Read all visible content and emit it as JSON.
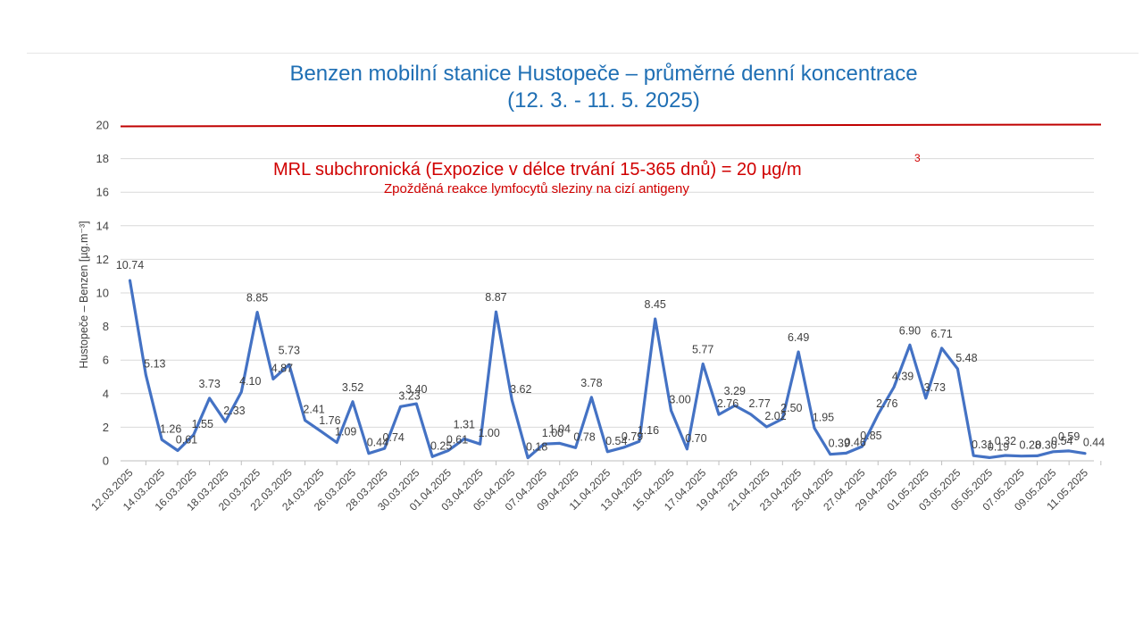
{
  "header": {
    "title_line1": "Benzen mobilní stanice Hustopeče – průměrné denní koncentrace",
    "title_line2": "(12. 3. - 11. 5. 2025)"
  },
  "annotation": {
    "mrl_text": "MRL subchronická (Expozice v délce trvání 15-365 dnů) = 20 µg/m",
    "mrl_superscript": "3",
    "mrl_note": "Zpožděná reakce lymfocytů sleziny na cizí antigeny",
    "mrl_value": 20,
    "mrl_color": "#c00000"
  },
  "chart_data": {
    "type": "line",
    "title": "Benzen mobilní stanice Hustopeče – průměrné denní koncentrace (12. 3. - 11. 5. 2025)",
    "ylabel": "Hustopeče – Benzen  [µg.m⁻³]",
    "ylim": [
      0,
      20
    ],
    "yticks": [
      0,
      2,
      4,
      6,
      8,
      10,
      12,
      14,
      16,
      18,
      20
    ],
    "grid": true,
    "line_color": "#4472c4",
    "x": [
      "12.03.2025",
      "13.03.2025",
      "14.03.2025",
      "15.03.2025",
      "16.03.2025",
      "17.03.2025",
      "18.03.2025",
      "19.03.2025",
      "20.03.2025",
      "21.03.2025",
      "22.03.2025",
      "23.03.2025",
      "24.03.2025",
      "25.03.2025",
      "26.03.2025",
      "27.03.2025",
      "28.03.2025",
      "29.03.2025",
      "30.03.2025",
      "31.03.2025",
      "01.04.2025",
      "02.04.2025",
      "03.04.2025",
      "04.04.2025",
      "05.04.2025",
      "06.04.2025",
      "07.04.2025",
      "08.04.2025",
      "09.04.2025",
      "10.04.2025",
      "11.04.2025",
      "12.04.2025",
      "13.04.2025",
      "14.04.2025",
      "15.04.2025",
      "16.04.2025",
      "17.04.2025",
      "18.04.2025",
      "19.04.2025",
      "20.04.2025",
      "21.04.2025",
      "22.04.2025",
      "23.04.2025",
      "24.04.2025",
      "25.04.2025",
      "26.04.2025",
      "27.04.2025",
      "28.04.2025",
      "29.04.2025",
      "30.04.2025",
      "01.05.2025",
      "02.05.2025",
      "03.05.2025",
      "04.05.2025",
      "05.05.2025",
      "06.05.2025",
      "07.05.2025",
      "08.05.2025",
      "09.05.2025",
      "10.05.2025",
      "11.05.2025"
    ],
    "xtick_labels": [
      "12.03.2025",
      "14.03.2025",
      "16.03.2025",
      "18.03.2025",
      "20.03.2025",
      "22.03.2025",
      "24.03.2025",
      "26.03.2025",
      "28.03.2025",
      "30.03.2025",
      "01.04.2025",
      "03.04.2025",
      "05.04.2025",
      "07.04.2025",
      "09.04.2025",
      "11.04.2025",
      "13.04.2025",
      "15.04.2025",
      "17.04.2025",
      "19.04.2025",
      "21.04.2025",
      "23.04.2025",
      "25.04.2025",
      "27.04.2025",
      "29.04.2025",
      "01.05.2025",
      "03.05.2025",
      "05.05.2025",
      "07.05.2025",
      "09.05.2025",
      "11.05.2025"
    ],
    "values": [
      10.74,
      5.13,
      1.26,
      0.61,
      1.55,
      3.73,
      2.33,
      4.1,
      8.85,
      4.87,
      5.73,
      2.41,
      1.76,
      1.09,
      3.52,
      0.44,
      0.74,
      3.23,
      3.4,
      0.25,
      0.61,
      1.31,
      1.0,
      8.87,
      3.62,
      0.18,
      1.0,
      1.04,
      0.78,
      3.78,
      0.54,
      0.79,
      1.16,
      8.45,
      3.0,
      0.7,
      5.77,
      2.76,
      3.29,
      2.77,
      2.02,
      2.5,
      6.49,
      1.95,
      0.39,
      0.46,
      0.85,
      2.76,
      4.39,
      6.9,
      3.73,
      6.71,
      5.48,
      0.31,
      0.19,
      0.32,
      0.28,
      0.3,
      0.54,
      0.59,
      0.44
    ],
    "data_labels": [
      "10.74",
      "5.13",
      "1.26",
      "0.61",
      "1.55",
      "3.73",
      "2.33",
      "4.10",
      "8.85",
      "4.87",
      "5.73",
      "2.41",
      "1.76",
      "1.09",
      "3.52",
      "0.44",
      "0.74",
      "3.23",
      "3.40",
      "0.25",
      "0.61",
      "1.31",
      "1.00",
      "8.87",
      "3.62",
      "0.18",
      "1.00",
      "1.04",
      "0.78",
      "3.78",
      "0.54",
      "0.79",
      "1.16",
      "8.45",
      "3.00",
      "0.70",
      "5.77",
      "2.76",
      "3.29",
      "2.77",
      "2.02",
      "2.50",
      "6.49",
      "1.95",
      "0.39",
      "0.46",
      "0.85",
      "2.76",
      "4.39",
      "6.90",
      "3.73",
      "6.71",
      "5.48",
      "0.31",
      "0.19",
      "0.32",
      "0.28",
      "0.30",
      "0.54",
      "0.59",
      "0.44"
    ],
    "reference_line": {
      "value": 20,
      "color": "#c00000"
    }
  }
}
